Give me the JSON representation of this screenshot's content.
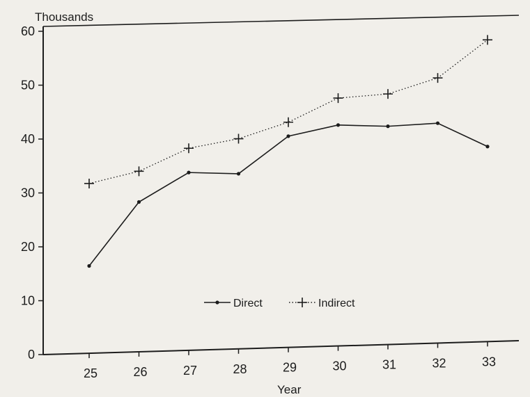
{
  "chart_data": {
    "type": "line",
    "title": "",
    "ylabel": "Thousands",
    "xlabel": "Year",
    "categories": [
      "25",
      "26",
      "27",
      "28",
      "29",
      "30",
      "31",
      "32",
      "33"
    ],
    "ylim": [
      0,
      60
    ],
    "yticks": [
      "0",
      "10",
      "20",
      "30",
      "40",
      "50",
      "60"
    ],
    "grid": false,
    "legend_position": "bottom-center",
    "series": [
      {
        "name": "Direct",
        "marker": "dot",
        "line_style": "solid",
        "color": "#1c1c1c",
        "values": [
          16.2,
          27.8,
          33.0,
          32.5,
          39.2,
          41.0,
          40.5,
          40.8,
          36.2
        ]
      },
      {
        "name": "Indirect",
        "marker": "plus",
        "line_style": "dotted",
        "color": "#1c1c1c",
        "values": [
          31.5,
          33.5,
          37.5,
          39.0,
          41.8,
          46.0,
          46.5,
          49.2,
          56.0
        ]
      }
    ]
  }
}
